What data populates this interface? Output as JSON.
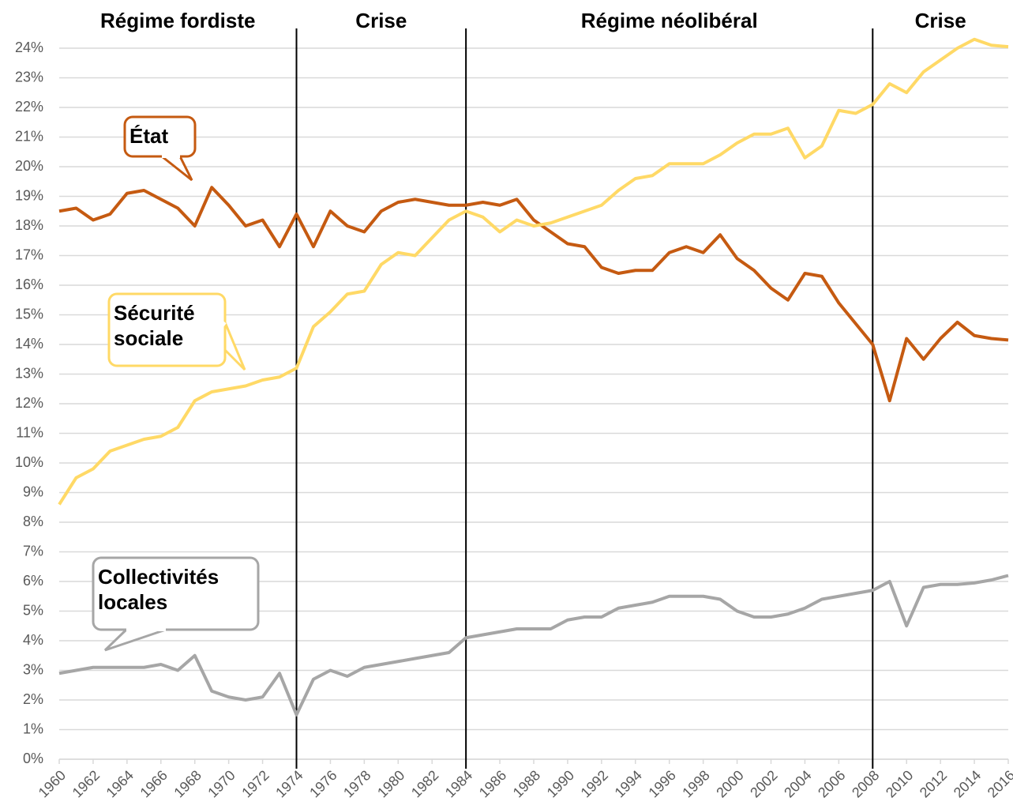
{
  "chart_data": {
    "type": "line",
    "x": [
      1960,
      1961,
      1962,
      1963,
      1964,
      1965,
      1966,
      1967,
      1968,
      1969,
      1970,
      1971,
      1972,
      1973,
      1974,
      1975,
      1976,
      1977,
      1978,
      1979,
      1980,
      1981,
      1982,
      1983,
      1984,
      1985,
      1986,
      1987,
      1988,
      1989,
      1990,
      1991,
      1992,
      1993,
      1994,
      1995,
      1996,
      1997,
      1998,
      1999,
      2000,
      2001,
      2002,
      2003,
      2004,
      2005,
      2006,
      2007,
      2008,
      2009,
      2010,
      2011,
      2012,
      2013,
      2014,
      2015,
      2016
    ],
    "series": [
      {
        "name": "État",
        "color": "#c55a11",
        "values": [
          18.5,
          18.6,
          18.2,
          18.4,
          19.1,
          19.2,
          18.9,
          18.6,
          18.0,
          19.3,
          18.7,
          18.0,
          18.2,
          17.3,
          18.4,
          17.3,
          18.5,
          18.0,
          17.8,
          18.5,
          18.8,
          18.9,
          18.8,
          18.7,
          18.7,
          18.8,
          18.7,
          18.9,
          18.2,
          17.8,
          17.4,
          17.3,
          16.6,
          16.4,
          16.5,
          16.5,
          17.1,
          17.3,
          17.1,
          17.7,
          16.9,
          16.5,
          15.9,
          15.5,
          16.4,
          16.3,
          15.4,
          14.7,
          14.0,
          12.1,
          14.2,
          13.5,
          14.2,
          14.75,
          14.3,
          14.2,
          14.15
        ]
      },
      {
        "name": "Sécurité sociale",
        "color": "#ffd966",
        "values": [
          8.6,
          9.5,
          9.8,
          10.4,
          10.6,
          10.8,
          10.9,
          11.2,
          12.1,
          12.4,
          12.5,
          12.6,
          12.8,
          12.9,
          13.2,
          14.6,
          15.1,
          15.7,
          15.8,
          16.7,
          17.1,
          17.0,
          17.6,
          18.2,
          18.5,
          18.3,
          17.8,
          18.2,
          18.0,
          18.1,
          18.3,
          18.5,
          18.7,
          19.2,
          19.6,
          19.7,
          20.1,
          20.1,
          20.1,
          20.4,
          20.8,
          21.1,
          21.1,
          21.3,
          20.3,
          20.7,
          21.9,
          21.8,
          22.1,
          22.8,
          22.5,
          23.2,
          23.6,
          24.0,
          24.3,
          24.1,
          24.05
        ]
      },
      {
        "name": "Collectivités locales",
        "color": "#a6a6a6",
        "values": [
          2.9,
          3.0,
          3.1,
          3.1,
          3.1,
          3.1,
          3.2,
          3.0,
          3.5,
          2.3,
          2.1,
          2.0,
          2.1,
          2.9,
          1.5,
          2.7,
          3.0,
          2.8,
          3.1,
          3.2,
          3.3,
          3.4,
          3.5,
          3.6,
          4.1,
          4.2,
          4.3,
          4.4,
          4.4,
          4.4,
          4.7,
          4.8,
          4.8,
          5.1,
          5.2,
          5.3,
          5.5,
          5.5,
          5.5,
          5.4,
          5.0,
          4.8,
          4.8,
          4.9,
          5.1,
          5.4,
          5.5,
          5.6,
          5.7,
          6.0,
          4.5,
          5.8,
          5.9,
          5.9,
          5.95,
          6.05,
          6.2
        ]
      }
    ],
    "xlim": [
      1960,
      2016
    ],
    "xticks": [
      1960,
      1962,
      1964,
      1966,
      1968,
      1970,
      1972,
      1974,
      1976,
      1978,
      1980,
      1982,
      1984,
      1986,
      1988,
      1990,
      1992,
      1994,
      1996,
      1998,
      2000,
      2002,
      2004,
      2006,
      2008,
      2010,
      2012,
      2014,
      2016
    ],
    "ylim": [
      0,
      24
    ],
    "yticks": [
      {
        "value": 0,
        "label": "0%"
      },
      {
        "value": 1,
        "label": "1%"
      },
      {
        "value": 2,
        "label": "2%"
      },
      {
        "value": 3,
        "label": "3%"
      },
      {
        "value": 4,
        "label": "4%"
      },
      {
        "value": 5,
        "label": "5%"
      },
      {
        "value": 6,
        "label": "6%"
      },
      {
        "value": 7,
        "label": "7%"
      },
      {
        "value": 8,
        "label": "8%"
      },
      {
        "value": 9,
        "label": "9%"
      },
      {
        "value": 10,
        "label": "10%"
      },
      {
        "value": 11,
        "label": "11%"
      },
      {
        "value": 12,
        "label": "12%"
      },
      {
        "value": 13,
        "label": "13%"
      },
      {
        "value": 14,
        "label": "14%"
      },
      {
        "value": 15,
        "label": "15%"
      },
      {
        "value": 16,
        "label": "16%"
      },
      {
        "value": 17,
        "label": "17%"
      },
      {
        "value": 18,
        "label": "18%"
      },
      {
        "value": 19,
        "label": "19%"
      },
      {
        "value": 20,
        "label": "20%"
      },
      {
        "value": 21,
        "label": "21%"
      },
      {
        "value": 22,
        "label": "22%"
      },
      {
        "value": 23,
        "label": "23%"
      },
      {
        "value": 24,
        "label": "24%"
      }
    ],
    "grid": true,
    "dividers": [
      1974,
      1984,
      2008
    ],
    "periods": [
      "Régime fordiste",
      "Crise",
      "Régime néolibéral",
      "Crise"
    ]
  }
}
